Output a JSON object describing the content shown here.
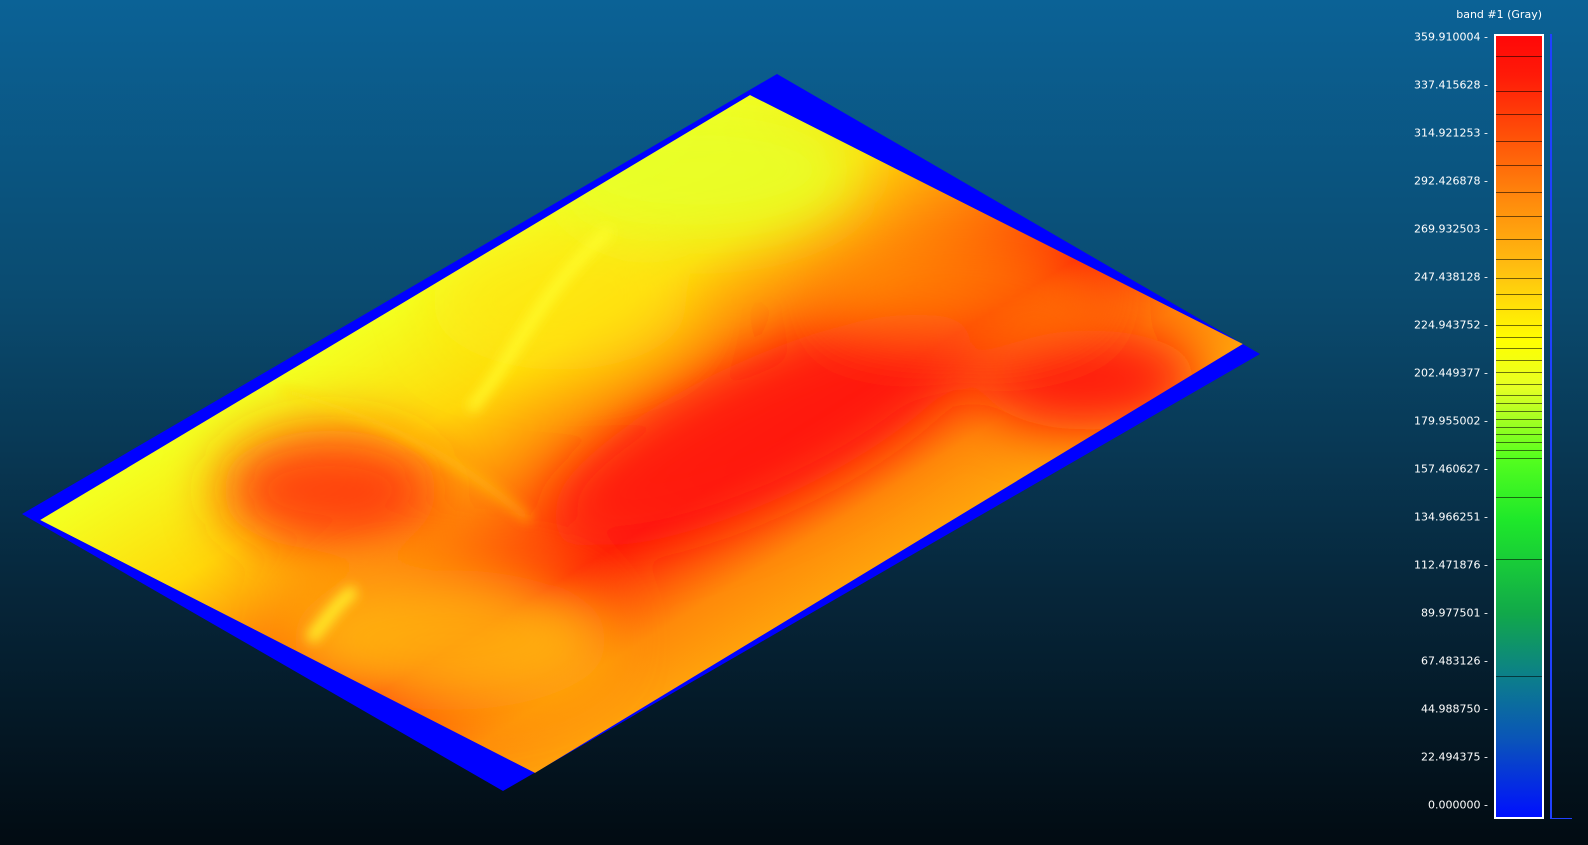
{
  "scalebar": {
    "title": "band #1 (Gray)",
    "ticks": [
      "359.910004",
      "337.415628",
      "314.921253",
      "292.426878",
      "269.932503",
      "247.438128",
      "224.943752",
      "202.449377",
      "179.955002",
      "157.460627",
      "134.966251",
      "112.471876",
      "89.977501",
      "67.483126",
      "44.988750",
      "22.494375",
      "0.000000"
    ],
    "min": 0.0,
    "max": 359.910004
  },
  "colors": {
    "background_top": "#0b6296",
    "background_bottom": "#020b12",
    "nodata": "#0000ff",
    "low": "#ffff00",
    "high": "#ff1000"
  }
}
